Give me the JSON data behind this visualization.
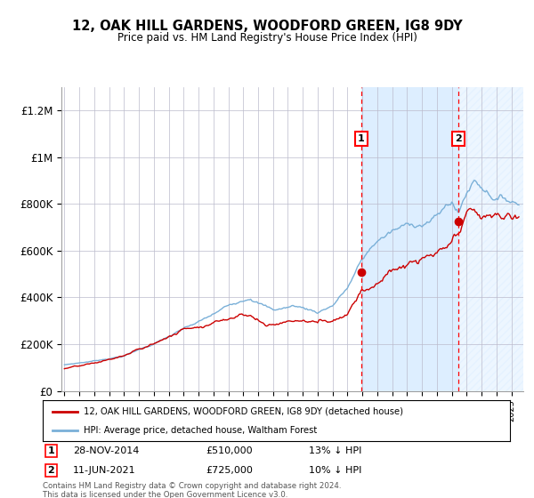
{
  "title": "12, OAK HILL GARDENS, WOODFORD GREEN, IG8 9DY",
  "subtitle": "Price paid vs. HM Land Registry's House Price Index (HPI)",
  "legend_line1": "12, OAK HILL GARDENS, WOODFORD GREEN, IG8 9DY (detached house)",
  "legend_line2": "HPI: Average price, detached house, Waltham Forest",
  "sale1_date": "28-NOV-2014",
  "sale1_price": 510000,
  "sale1_label": "13% ↓ HPI",
  "sale2_date": "11-JUN-2021",
  "sale2_price": 725000,
  "sale2_label": "10% ↓ HPI",
  "sale1_x": 2014.91,
  "sale2_x": 2021.44,
  "ylim": [
    0,
    1300000
  ],
  "xlim_start": 1994.8,
  "xlim_end": 2025.8,
  "yticks": [
    0,
    200000,
    400000,
    600000,
    800000,
    1000000,
    1200000
  ],
  "ytick_labels": [
    "£0",
    "£200K",
    "£400K",
    "£600K",
    "£800K",
    "£1M",
    "£1.2M"
  ],
  "red_line_color": "#cc0000",
  "blue_line_color": "#7ab0d8",
  "shade_color": "#ddeeff",
  "grid_color": "#bbbbcc",
  "footer": "Contains HM Land Registry data © Crown copyright and database right 2024.\nThis data is licensed under the Open Government Licence v3.0.",
  "background_color": "#ffffff"
}
